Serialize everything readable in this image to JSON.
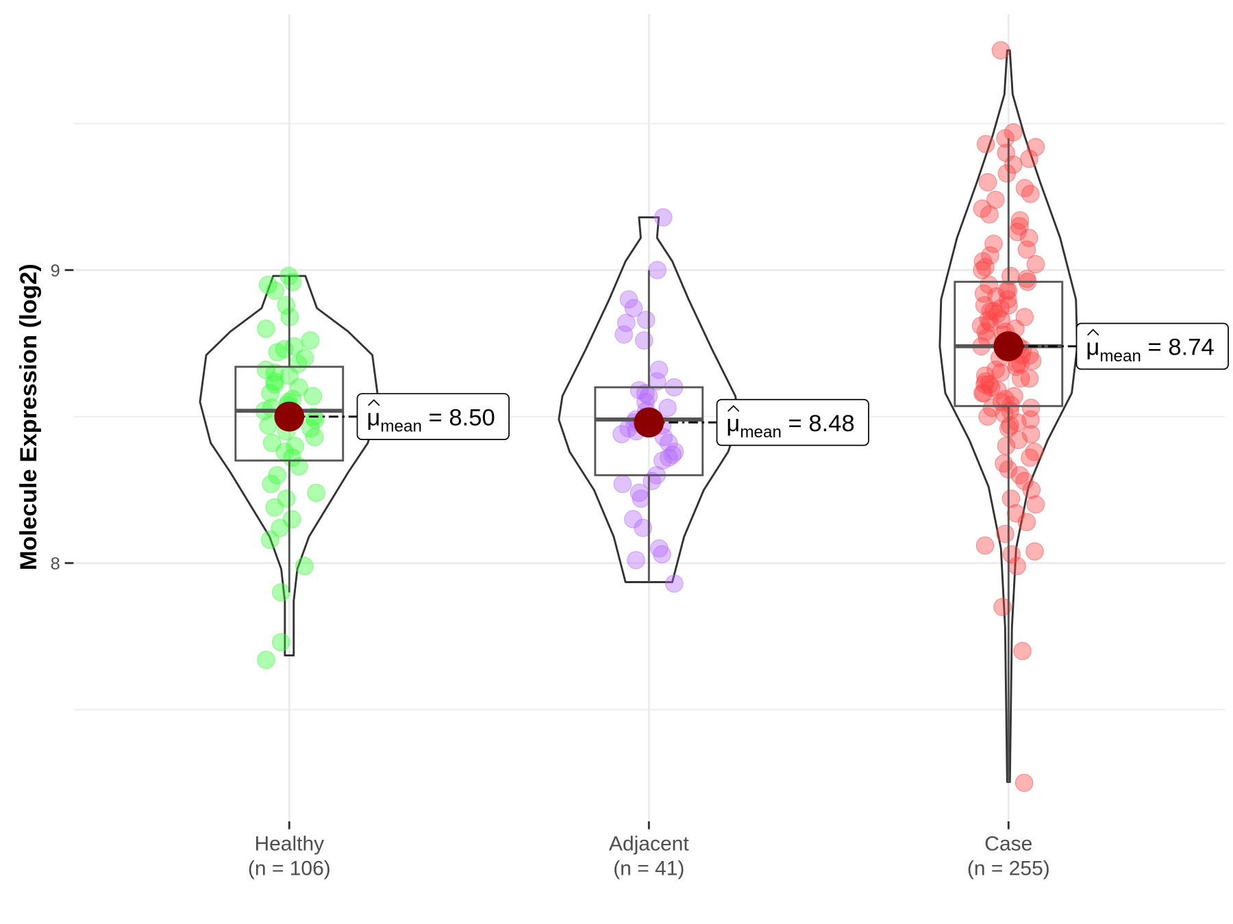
{
  "chart_data": {
    "type": "violin",
    "title": "",
    "xlabel": "",
    "ylabel": "Molecule Expression (log2)",
    "ylim": [
      7.05,
      9.93
    ],
    "yticks": [
      8,
      9
    ],
    "ytick_labels": [
      "8",
      "9"
    ],
    "grid": true,
    "mean_symbol": "μ",
    "mean_subscript": "mean",
    "groups": [
      {
        "name": "Healthy",
        "n_label": "(n = 106)",
        "color": "#33ff33",
        "mean": 8.5,
        "mean_label": "8.50",
        "box": {
          "q1": 8.35,
          "median": 8.52,
          "q3": 8.67,
          "whisker_low": 7.9,
          "whisker_high": 8.98
        },
        "violin": [
          [
            8.98,
            0.18
          ],
          [
            8.87,
            0.31
          ],
          [
            8.79,
            0.66
          ],
          [
            8.71,
            0.93
          ],
          [
            8.55,
            1.0
          ],
          [
            8.41,
            0.88
          ],
          [
            8.31,
            0.66
          ],
          [
            8.2,
            0.44
          ],
          [
            8.09,
            0.22
          ],
          [
            7.98,
            0.09
          ],
          [
            7.87,
            0.05
          ],
          [
            7.685,
            0.05
          ]
        ],
        "points": [
          8.98,
          8.96,
          8.95,
          8.93,
          8.88,
          8.84,
          8.8,
          8.76,
          8.74,
          8.73,
          8.72,
          8.7,
          8.68,
          8.66,
          8.64,
          8.62,
          8.6,
          8.58,
          8.56,
          8.55,
          8.53,
          8.52,
          8.5,
          8.49,
          8.47,
          8.45,
          8.43,
          8.41,
          8.38,
          8.36,
          8.33,
          8.3,
          8.27,
          8.24,
          8.22,
          8.19,
          8.15,
          8.12,
          8.08,
          7.99,
          7.9,
          7.73,
          7.67,
          8.57,
          8.61,
          8.46,
          8.54,
          8.65,
          8.4,
          8.51
        ]
      },
      {
        "name": "Adjacent",
        "n_label": "(n = 41)",
        "color": "#b266ff",
        "mean": 8.48,
        "mean_label": "8.48",
        "box": {
          "q1": 8.3,
          "median": 8.49,
          "q3": 8.6,
          "whisker_low": 7.935,
          "whisker_high": 9.0
        },
        "violin": [
          [
            9.18,
            0.11
          ],
          [
            9.11,
            0.09
          ],
          [
            9.03,
            0.26
          ],
          [
            8.9,
            0.44
          ],
          [
            8.73,
            0.7
          ],
          [
            8.57,
            0.96
          ],
          [
            8.49,
            1.0
          ],
          [
            8.38,
            0.88
          ],
          [
            8.25,
            0.61
          ],
          [
            8.09,
            0.39
          ],
          [
            7.935,
            0.26
          ]
        ],
        "points": [
          9.18,
          9.0,
          8.9,
          8.87,
          8.83,
          8.82,
          8.78,
          8.76,
          8.66,
          8.62,
          8.6,
          8.59,
          8.58,
          8.57,
          8.55,
          8.53,
          8.52,
          8.5,
          8.49,
          8.48,
          8.47,
          8.46,
          8.45,
          8.43,
          8.41,
          8.38,
          8.37,
          8.36,
          8.35,
          8.3,
          8.28,
          8.27,
          8.24,
          8.22,
          8.15,
          8.12,
          8.05,
          8.03,
          8.01,
          7.93,
          8.44
        ]
      },
      {
        "name": "Case",
        "n_label": "(n = 255)",
        "color": "#ff4040",
        "mean": 8.74,
        "mean_label": "8.74",
        "box": {
          "q1": 8.536,
          "median": 8.74,
          "q3": 8.96,
          "whisker_low": 7.253,
          "whisker_high": 9.45
        },
        "violin": [
          [
            9.75,
            0.02
          ],
          [
            9.6,
            0.06
          ],
          [
            9.46,
            0.23
          ],
          [
            9.3,
            0.46
          ],
          [
            9.11,
            0.75
          ],
          [
            8.9,
            0.98
          ],
          [
            8.74,
            1.0
          ],
          [
            8.58,
            0.92
          ],
          [
            8.42,
            0.57
          ],
          [
            8.26,
            0.29
          ],
          [
            8.05,
            0.11
          ],
          [
            7.78,
            0.05
          ],
          [
            7.253,
            0.02
          ]
        ],
        "points": [
          9.75,
          9.47,
          9.45,
          9.43,
          9.42,
          9.4,
          9.38,
          9.36,
          9.33,
          9.3,
          9.28,
          9.26,
          9.24,
          9.21,
          9.19,
          9.17,
          9.15,
          9.13,
          9.11,
          9.09,
          9.07,
          9.05,
          9.03,
          9.01,
          9.0,
          8.98,
          8.97,
          8.96,
          8.95,
          8.93,
          8.92,
          8.91,
          8.9,
          8.88,
          8.87,
          8.86,
          8.85,
          8.84,
          8.83,
          8.82,
          8.81,
          8.8,
          8.79,
          8.78,
          8.77,
          8.76,
          8.75,
          8.74,
          8.73,
          8.72,
          8.71,
          8.7,
          8.69,
          8.68,
          8.67,
          8.66,
          8.65,
          8.64,
          8.63,
          8.62,
          8.61,
          8.6,
          8.59,
          8.58,
          8.57,
          8.56,
          8.55,
          8.54,
          8.53,
          8.52,
          8.51,
          8.5,
          8.49,
          8.48,
          8.46,
          8.44,
          8.42,
          8.4,
          8.38,
          8.36,
          8.34,
          8.32,
          8.3,
          8.28,
          8.25,
          8.22,
          8.2,
          8.17,
          8.14,
          8.1,
          8.06,
          8.04,
          8.03,
          7.99,
          7.85,
          7.7,
          7.25,
          8.88,
          8.79,
          8.71,
          8.63,
          8.58,
          8.83,
          8.93,
          9.02,
          8.68,
          8.61,
          8.74,
          8.86,
          8.53,
          8.47
        ]
      }
    ]
  }
}
